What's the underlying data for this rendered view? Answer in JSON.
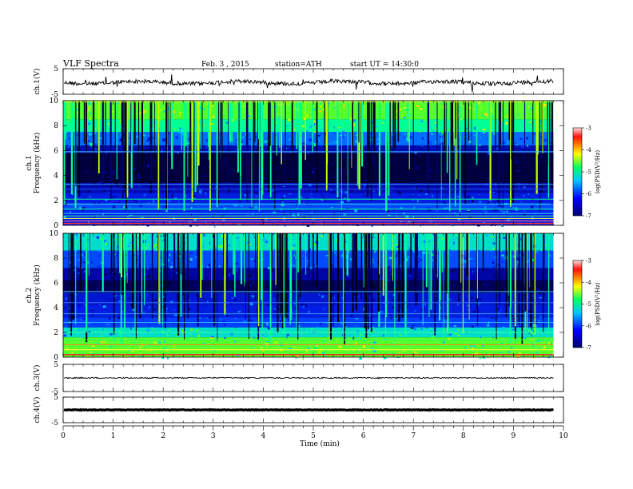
{
  "header": {
    "title": "VLF Spectra",
    "date": "Feb. 3 , 2015",
    "station": "station=ATH",
    "start": "start UT = 14:30:0"
  },
  "chart_data": [
    {
      "type": "line",
      "name": "ch1-timeseries",
      "ylabel": "ch.1(V)",
      "ylim": [
        -5,
        5
      ],
      "yticks": [
        "5",
        "-5"
      ],
      "level": -0.4
    },
    {
      "type": "heatmap",
      "name": "ch1-spectrogram",
      "ylabel_top": "ch.1",
      "ylabel": "Frequency (kHz)",
      "ylim": [
        0,
        10
      ],
      "yticks": [
        "10",
        "8",
        "6",
        "4",
        "2",
        "0"
      ],
      "colorbar": {
        "label": "log(PSD(V²/Hz)",
        "ticks": [
          "-3",
          "-4",
          "-5",
          "-6",
          "-7"
        ],
        "range": [
          -7,
          -3
        ]
      }
    },
    {
      "type": "heatmap",
      "name": "ch2-spectrogram",
      "ylabel_top": "ch.2",
      "ylabel": "Frequency (kHz)",
      "ylim": [
        0,
        10
      ],
      "yticks": [
        "10",
        "8",
        "6",
        "4",
        "2",
        "0"
      ],
      "colorbar": {
        "label": "log(PSD(V²/Hz)",
        "ticks": [
          "-3",
          "-4",
          "-5",
          "-6",
          "-7"
        ],
        "range": [
          -7,
          -3
        ]
      }
    },
    {
      "type": "line",
      "name": "ch3-timeseries",
      "ylabel": "ch.3(V)",
      "ylim": [
        -5,
        5
      ],
      "yticks": [
        "5",
        "-5"
      ],
      "level": 0.0
    },
    {
      "type": "line",
      "name": "ch4-timeseries",
      "ylabel": "ch.4(V)",
      "ylim": [
        -5,
        5
      ],
      "yticks": [
        "5",
        "-5"
      ],
      "level": 0.0
    }
  ],
  "xaxis": {
    "label": "Time (min)",
    "range": [
      0,
      10
    ],
    "data_end": 9.8,
    "ticks": [
      "0",
      "1",
      "2",
      "3",
      "4",
      "5",
      "6",
      "7",
      "8",
      "9",
      "10"
    ]
  }
}
